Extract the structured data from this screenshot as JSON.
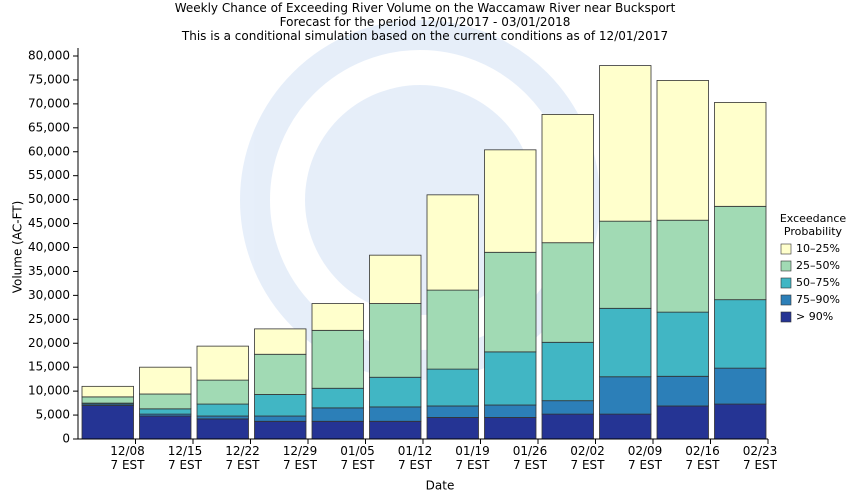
{
  "chart_data": {
    "type": "stacked_bar",
    "title": "Weekly Chance of Exceeding River Volume on the Waccamaw River near Bucksport",
    "subtitle": "Forecast for the period 12/01/2017 - 03/01/2018",
    "note": "This is a conditional simulation based on the current conditions as of 12/01/2017",
    "x_label": "Date",
    "y_label": "Volume (AC-FT)",
    "legend_title": "Exceedance\nProbability",
    "legend": "right",
    "grid": false,
    "categories": [
      "12/08\n7 EST",
      "12/15\n7 EST",
      "12/22\n7 EST",
      "12/29\n7 EST",
      "01/05\n7 EST",
      "01/12\n7 EST",
      "01/19\n7 EST",
      "01/26\n7 EST",
      "02/02\n7 EST",
      "02/09\n7 EST",
      "02/16\n7 EST",
      "02/23\n7 EST"
    ],
    "series": [
      {
        "name": "> 90%",
        "color": "#253494",
        "values": [
          7000,
          4800,
          4200,
          3700,
          3700,
          3700,
          4500,
          4500,
          5200,
          5200,
          6900,
          7300
        ]
      },
      {
        "name": "75–90%",
        "color": "#2c7fb8",
        "values": [
          300,
          400,
          600,
          1100,
          2800,
          3000,
          2400,
          2600,
          2800,
          7800,
          6200,
          7500
        ]
      },
      {
        "name": "50–75%",
        "color": "#41b6c4",
        "values": [
          200,
          1100,
          2500,
          4500,
          4100,
          6200,
          7700,
          11100,
          12200,
          14300,
          13400,
          14300
        ]
      },
      {
        "name": "25–50%",
        "color": "#a1dab4",
        "values": [
          1300,
          3100,
          5000,
          8400,
          12100,
          15400,
          16500,
          20800,
          20800,
          18200,
          19200,
          19500
        ]
      },
      {
        "name": "10–25%",
        "color": "#ffffcc",
        "values": [
          2200,
          5600,
          7100,
          5300,
          5600,
          10100,
          19900,
          21400,
          26800,
          32500,
          29200,
          21700
        ]
      }
    ],
    "ylim": [
      0,
      80000
    ],
    "yticks": [
      0,
      {
        "value": 5000,
        "label": "5,000"
      },
      {
        "value": 10000,
        "label": "10,000"
      },
      {
        "value": 15000,
        "label": "15,000"
      },
      {
        "value": 20000,
        "label": "20,000"
      },
      {
        "value": 25000,
        "label": "25,000"
      },
      {
        "value": 30000,
        "label": "30,000"
      },
      {
        "value": 35000,
        "label": "35,000"
      },
      {
        "value": 40000,
        "label": "40,000"
      },
      {
        "value": 45000,
        "label": "45,000"
      },
      {
        "value": 50000,
        "label": "50,000"
      },
      {
        "value": 55000,
        "label": "55,000"
      },
      {
        "value": 60000,
        "label": "60,000"
      },
      {
        "value": 65000,
        "label": "65,000"
      },
      {
        "value": 70000,
        "label": "70,000"
      },
      {
        "value": 75000,
        "label": "75,000"
      },
      {
        "value": 80000,
        "label": "80,000"
      }
    ]
  }
}
